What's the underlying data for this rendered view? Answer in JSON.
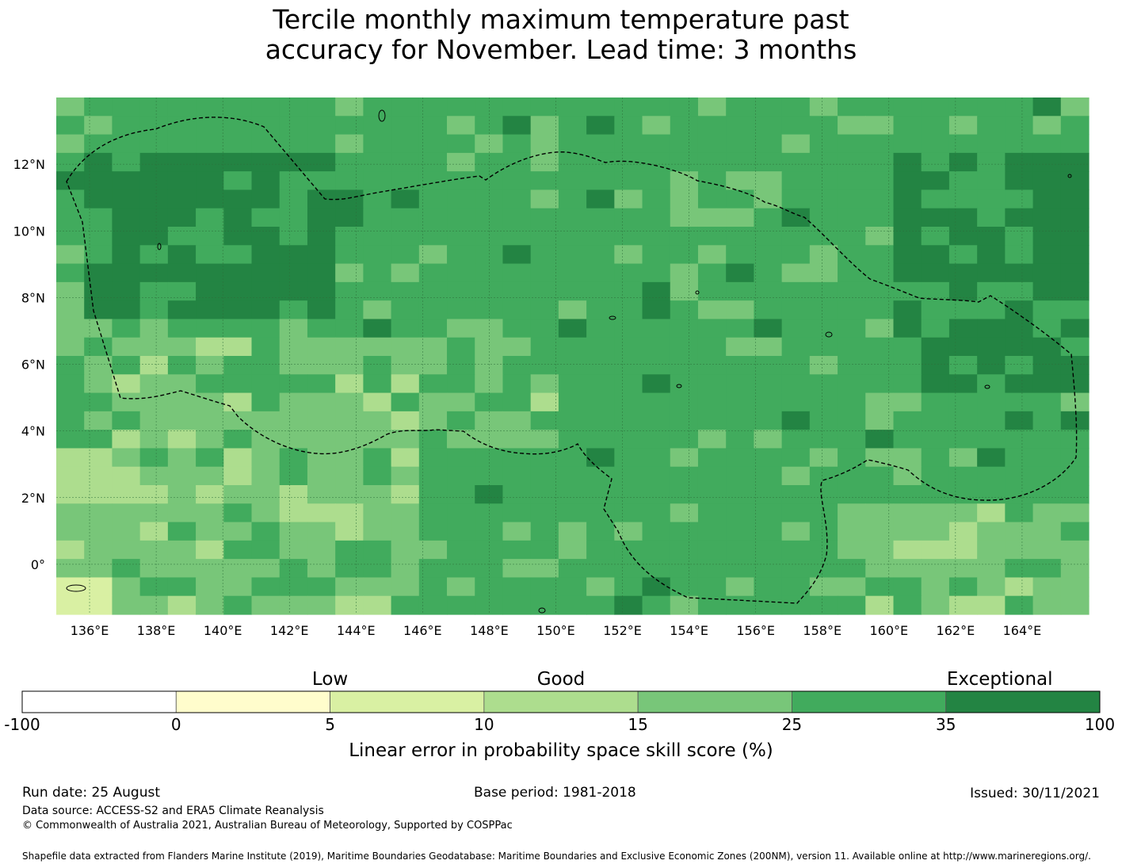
{
  "title_line1": "Tercile monthly maximum temperature past",
  "title_line2": "accuracy for November. Lead time: 3 months",
  "map": {
    "lon_labels": [
      "136°E",
      "138°E",
      "140°E",
      "142°E",
      "144°E",
      "146°E",
      "148°E",
      "150°E",
      "152°E",
      "154°E",
      "156°E",
      "158°E",
      "160°E",
      "162°E",
      "164°E"
    ],
    "lat_labels": [
      "12°N",
      "10°N",
      "8°N",
      "6°N",
      "4°N",
      "2°N",
      "0°"
    ],
    "lon_range": [
      135,
      166
    ],
    "lat_range": [
      -1.5,
      14
    ]
  },
  "legend": {
    "categories": [
      "Low",
      "Good",
      "Exceptional"
    ],
    "ticks": [
      "-100",
      "0",
      "5",
      "10",
      "15",
      "25",
      "35",
      "100"
    ],
    "colors": [
      "#ffffff",
      "#fffdcc",
      "#d9f0a3",
      "#addd8e",
      "#78c679",
      "#41ab5d",
      "#238443"
    ],
    "label": "Linear error in probability space skill score (%)"
  },
  "footer": {
    "run_date": "Run date: 25 August",
    "base_period": "Base period: 1981-2018",
    "issued": "Issued: 30/11/2021",
    "data_source": "Data source: ACCESS-S2 and ERA5 Climate Reanalysis",
    "copyright": "© Commonwealth of Australia 2021, Australian Bureau of Meteorology, Supported by COSPPac",
    "shapefile": "Shapefile data extracted from Flanders Marine Institute (2019), Maritime Boundaries Geodatabase: Maritime Boundaries and Exclusive Economic Zones (200NM), version 11. Available online at http://www.marineregions.org/."
  }
}
